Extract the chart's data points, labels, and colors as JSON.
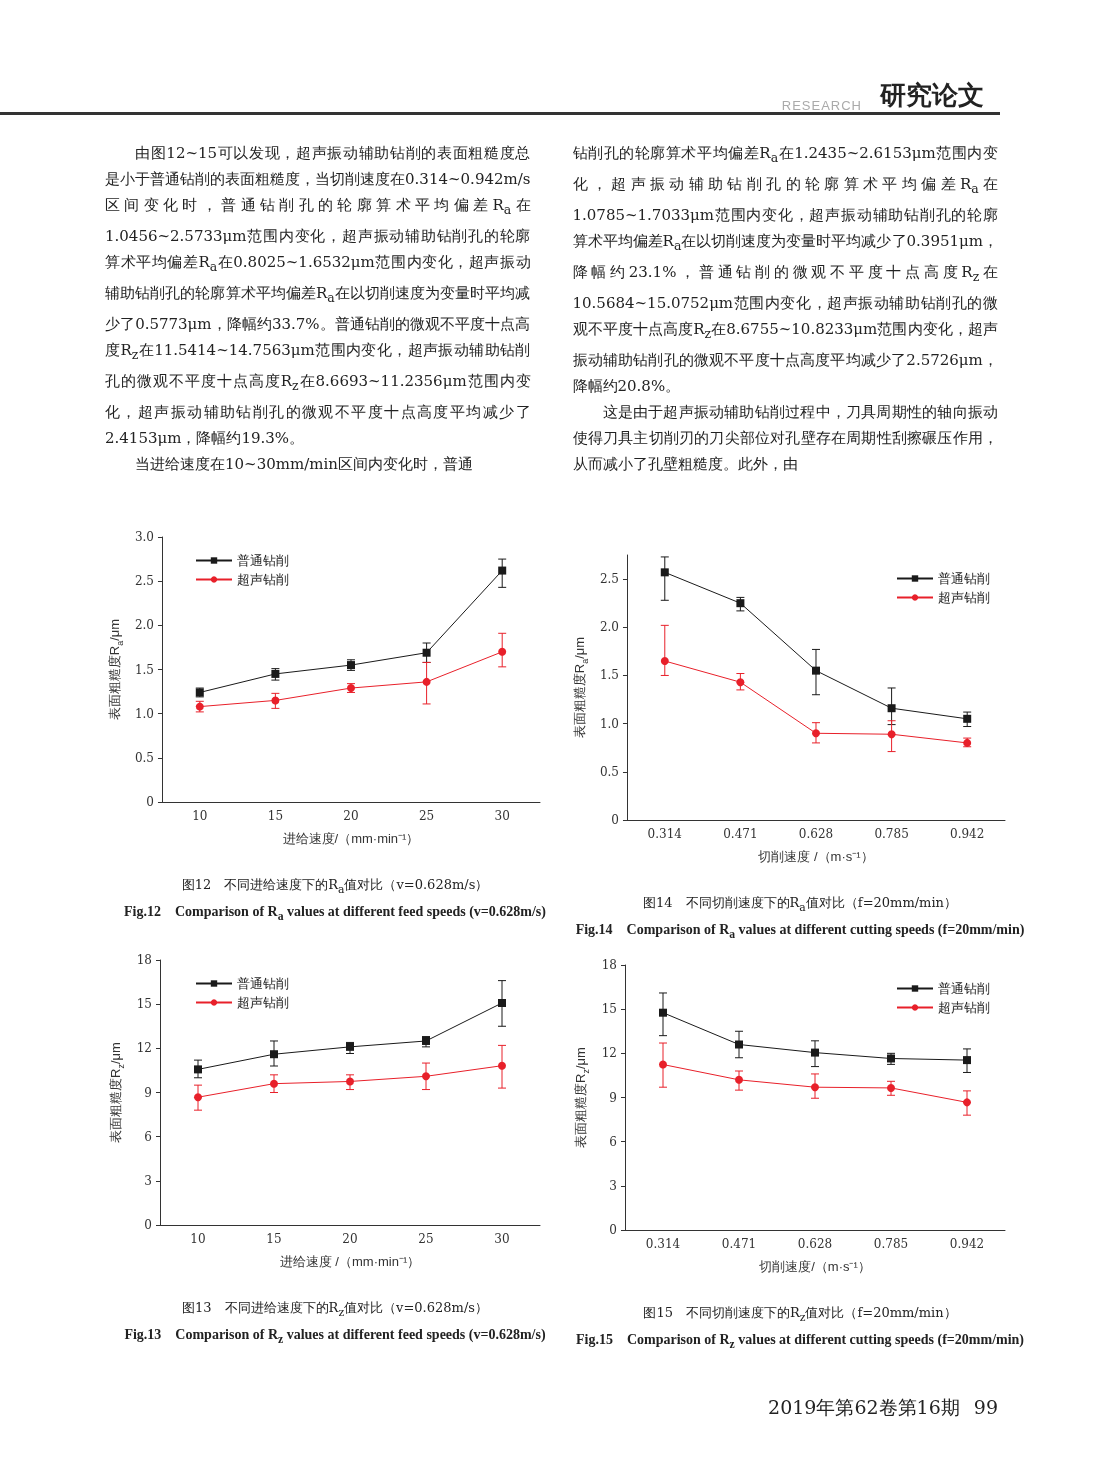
{
  "chart_data": [
    {
      "type": "line",
      "title": "图12　不同进给速度下的R$_{a}$值对比（v=0.628m/s）",
      "subtitle": "Fig.12　Comparison of R$_{a}$ values at different feed speeds (v=0.628m/s)",
      "xlabel": "进给速度/（mm·min⁻¹）",
      "ylabel": "表面粗糙度R$_{a}$/μm",
      "annotations": [
        "RESEARCH",
        "研究论文",
        "由图12~15可以发现，超声振动辅助钻削的表面粗糙度总是小于普通钻削的表面粗糙度，当切削速度在0.314~0.942m/s区间变化时，普通钻削孔的轮廓算术平均偏差R$_{a}$在1.0456~2.5733μm范围内变化，超声振动辅助钻削孔的轮廓算术平均偏差R$_{a}$在0.8025~1.6532μm范围内变化，超声振动辅助钻削孔的轮廓算术平均偏差R$_{a}$在以切削速度为变量时平均减少了0.5773μm，降幅约33.7%。普通钻削的微观不平度十点高度R$_{z}$在11.5414~14.7563μm范围内变化，超声振动辅助钻削孔的微观不平度十点高度R$_{z}$在8.6693~11.2356μm范围内变化，超声振动辅助钻削孔的微观不平度十点高度平均减少了2.4153μm，降幅约19.3%。",
        "当进给速度在10~30mm/min区间内变化时，普通",
        "钻削孔的轮廓算术平均偏差R$_{a}$在1.2435~2.6153μm范围内变化，超声振动辅助钻削孔的轮廓算术平均偏差R$_{a}$在1.0785~1.7033μm范围内变化，超声振动辅助钻削孔的轮廓算术平均偏差R$_{a}$在以切削速度为变量时平均减少了0.3951μm，降幅约23.1%，普通钻削的微观不平度十点高度R$_{z}$在10.5684~15.0752μm范围内变化，超声振动辅助钻削孔的微观不平度十点高度R$_{z}$在8.6755~10.8233μm范围内变化，超声振动辅助钻削孔的微观不平度十点高度平均减少了2.5726μm，降幅约20.8%。",
        "这是由于超声振动辅助钻削过程中，刀具周期性的轴向振动使得刀具主切削刃的刀尖部位对孔壁存在周期性刮擦碾压作用，从而减小了孔壁粗糙度。此外，由"
      ],
      "categories": [
        "10",
        "15",
        "20",
        "25",
        "30"
      ],
      "series": [
        {
          "name": "普通钻削",
          "color": "#1a1a1a",
          "marker": "square",
          "values": [
            1.24,
            1.45,
            1.55,
            1.69,
            2.62
          ],
          "errors": [
            [
              1.19,
              1.29
            ],
            [
              1.38,
              1.51
            ],
            [
              1.49,
              1.61
            ],
            [
              1.58,
              1.8
            ],
            [
              2.43,
              2.75
            ]
          ]
        },
        {
          "name": "超声钻削",
          "color": "#e8202a",
          "marker": "circle",
          "values": [
            1.08,
            1.15,
            1.29,
            1.36,
            1.7
          ],
          "errors": [
            [
              1.02,
              1.14
            ],
            [
              1.06,
              1.23
            ],
            [
              1.24,
              1.34
            ],
            [
              1.11,
              1.58
            ],
            [
              1.53,
              1.91
            ]
          ]
        }
      ],
      "ylim": [
        0,
        3
      ],
      "yticks": [
        0,
        0.5,
        {
          "value": 1,
          "label": "1.0"
        },
        1.5,
        {
          "value": 2,
          "label": "2.0"
        },
        2.5,
        {
          "value": 3,
          "label": "3.0"
        }
      ],
      "grid": false,
      "legend": "top left"
    },
    {
      "type": "line",
      "title": "图14　不同切削速度下的R$_{a}$值对比（f=20mm/min）",
      "subtitle": "Fig.14　Comparison of R$_{a}$ values at different cutting speeds (f=20mm/min)",
      "xlabel": "切削速度 /（m·s⁻¹）",
      "ylabel": "表面粗糙度R$_{a}$/μm",
      "categories": [
        "0.314",
        "0.471",
        "0.628",
        "0.785",
        "0.942"
      ],
      "series": [
        {
          "name": "普通钻削",
          "color": "#1a1a1a",
          "marker": "square",
          "values": [
            2.57,
            2.25,
            1.55,
            1.16,
            1.05
          ],
          "errors": [
            [
              2.28,
              2.73
            ],
            [
              2.17,
              2.31
            ],
            [
              1.3,
              1.77
            ],
            [
              0.99,
              1.37
            ],
            [
              0.97,
              1.12
            ]
          ]
        },
        {
          "name": "超声钻削",
          "color": "#e8202a",
          "marker": "circle",
          "values": [
            1.65,
            1.43,
            0.9,
            0.89,
            0.8
          ],
          "errors": [
            [
              1.5,
              2.02
            ],
            [
              1.35,
              1.52
            ],
            [
              0.8,
              1.01
            ],
            [
              0.71,
              1.03
            ],
            [
              0.76,
              0.85
            ]
          ]
        }
      ],
      "ylim": [
        0,
        2.75
      ],
      "yticks": [
        0,
        0.5,
        {
          "value": 1,
          "label": "1.0"
        },
        1.5,
        {
          "value": 2,
          "label": "2.0"
        },
        2.5
      ],
      "grid": false,
      "legend": "top right"
    },
    {
      "type": "line",
      "title": "图13　不同进给速度下的R$_{z}$值对比（v=0.628m/s）",
      "subtitle": "Fig.13　Comparison of R$_{z}$ values at different feed speeds (v=0.628m/s)",
      "xlabel": "进给速度 /（mm·min⁻¹）",
      "ylabel": "表面粗糙度R$_{z}$/μm",
      "categories": [
        "10",
        "15",
        "20",
        "25",
        "30"
      ],
      "series": [
        {
          "name": "普通钻削",
          "color": "#1a1a1a",
          "marker": "square",
          "values": [
            10.57,
            11.6,
            12.1,
            12.5,
            15.08
          ],
          "errors": [
            [
              10.0,
              11.2
            ],
            [
              10.8,
              12.5
            ],
            [
              11.65,
              12.4
            ],
            [
              12.1,
              12.8
            ],
            [
              13.5,
              16.6
            ]
          ]
        },
        {
          "name": "超声钻削",
          "color": "#e8202a",
          "marker": "circle",
          "values": [
            8.68,
            9.6,
            9.75,
            10.1,
            10.82
          ],
          "errors": [
            [
              7.8,
              9.5
            ],
            [
              9.0,
              10.2
            ],
            [
              9.2,
              10.2
            ],
            [
              9.2,
              11.0
            ],
            [
              9.3,
              12.2
            ]
          ]
        }
      ],
      "ylim": [
        0,
        18
      ],
      "yticks": [
        0,
        3,
        6,
        9,
        12,
        15,
        18
      ],
      "grid": false,
      "legend": "top left"
    },
    {
      "type": "line",
      "title": "图15　不同切削速度下的R$_{z}$值对比（f=20mm/min）",
      "subtitle": "Fig.15　Comparison of R$_{z}$ values at different cutting speeds (f=20mm/min)",
      "xlabel": "切削速度/（m·s⁻¹）",
      "ylabel": "表面粗糙度R$_{z}$/μm",
      "annotations": [
        "2019年第62卷第16期",
        "99"
      ],
      "categories": [
        "0.314",
        "0.471",
        "0.628",
        "0.785",
        "0.942"
      ],
      "series": [
        {
          "name": "普通钻削",
          "color": "#1a1a1a",
          "marker": "square",
          "values": [
            14.76,
            12.6,
            12.05,
            11.65,
            11.54
          ],
          "errors": [
            [
              13.2,
              16.1
            ],
            [
              11.7,
              13.5
            ],
            [
              11.1,
              12.85
            ],
            [
              11.25,
              12.0
            ],
            [
              10.7,
              12.3
            ]
          ]
        },
        {
          "name": "超声钻削",
          "color": "#e8202a",
          "marker": "circle",
          "values": [
            11.24,
            10.2,
            9.7,
            9.65,
            8.67
          ],
          "errors": [
            [
              9.7,
              12.7
            ],
            [
              9.5,
              10.8
            ],
            [
              8.95,
              10.6
            ],
            [
              9.15,
              10.1
            ],
            [
              7.8,
              9.45
            ]
          ]
        }
      ],
      "ylim": [
        0,
        18
      ],
      "yticks": [
        0,
        3,
        6,
        9,
        12,
        15,
        18
      ],
      "grid": false,
      "legend": "top right"
    }
  ]
}
